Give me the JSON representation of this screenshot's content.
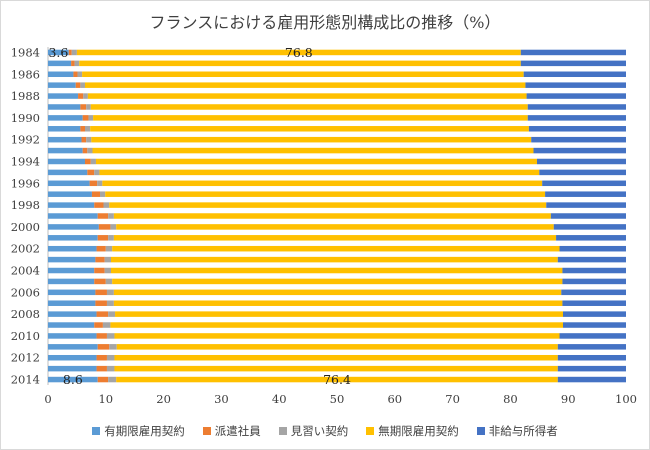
{
  "chart_data": {
    "type": "bar",
    "orientation": "horizontal",
    "stacked": true,
    "title": "フランスにおける雇用形態別構成比の推移（%）",
    "categories": [
      "1984",
      "1985",
      "1986",
      "1987",
      "1988",
      "1989",
      "1990",
      "1991",
      "1992",
      "1993",
      "1994",
      "1995",
      "1996",
      "1997",
      "1998",
      "1999",
      "2000",
      "2001",
      "2002",
      "2003",
      "2004",
      "2005",
      "2006",
      "2007",
      "2008",
      "2009",
      "2010",
      "2011",
      "2012",
      "2013",
      "2014"
    ],
    "category_tick_labels": [
      "1984",
      "1986",
      "1988",
      "1990",
      "1992",
      "1994",
      "1996",
      "1998",
      "2000",
      "2002",
      "2004",
      "2006",
      "2008",
      "2010",
      "2012",
      "2014"
    ],
    "xlim": [
      0,
      100
    ],
    "x_ticks": [
      0,
      10,
      20,
      30,
      40,
      50,
      60,
      70,
      80,
      90,
      100
    ],
    "grid": false,
    "legend_position": "bottom",
    "series": [
      {
        "name": "有期限雇用契約",
        "color": "#5B9BD5",
        "values": [
          3.6,
          4.0,
          4.4,
          4.8,
          5.2,
          5.6,
          6.0,
          5.6,
          5.8,
          6.0,
          6.4,
          6.8,
          7.2,
          7.6,
          8.0,
          8.6,
          8.8,
          8.6,
          8.4,
          8.2,
          8.0,
          8.0,
          8.2,
          8.2,
          8.4,
          8.0,
          8.4,
          8.6,
          8.4,
          8.4,
          8.6
        ]
      },
      {
        "name": "派遣社員",
        "color": "#ED7D31",
        "values": [
          0.5,
          0.6,
          0.7,
          0.8,
          0.9,
          1.0,
          1.0,
          0.8,
          0.8,
          0.8,
          1.0,
          1.2,
          1.3,
          1.4,
          1.6,
          1.8,
          2.0,
          1.8,
          1.6,
          1.6,
          1.8,
          2.0,
          2.0,
          2.0,
          2.0,
          1.5,
          1.8,
          2.0,
          1.8,
          1.8,
          1.8
        ]
      },
      {
        "name": "見習い契約",
        "color": "#A5A5A5",
        "values": [
          0.9,
          0.8,
          0.8,
          0.8,
          0.8,
          0.8,
          0.8,
          0.9,
          0.9,
          0.9,
          0.9,
          0.9,
          0.9,
          0.9,
          1.0,
          1.0,
          1.0,
          1.0,
          1.1,
          1.1,
          1.1,
          1.1,
          1.2,
          1.2,
          1.2,
          1.3,
          1.3,
          1.3,
          1.3,
          1.3,
          1.4
        ]
      },
      {
        "name": "無期限雇用契約",
        "color": "#FFC000",
        "values": [
          76.8,
          76.4,
          76.4,
          76.2,
          75.9,
          75.6,
          75.2,
          75.9,
          76.1,
          76.3,
          76.3,
          76.1,
          76.1,
          76.1,
          75.6,
          75.6,
          75.7,
          76.5,
          77.4,
          77.3,
          78.1,
          77.9,
          77.4,
          77.6,
          77.5,
          78.3,
          77.0,
          76.3,
          76.7,
          76.7,
          76.4
        ]
      },
      {
        "name": "非給与所得者",
        "color": "#4472C4",
        "values": [
          18.2,
          18.2,
          17.7,
          17.4,
          17.2,
          17.0,
          17.0,
          16.8,
          16.4,
          16.0,
          15.4,
          15.0,
          14.5,
          14.0,
          13.8,
          13.0,
          12.5,
          12.1,
          11.5,
          11.8,
          11.0,
          11.0,
          11.2,
          11.0,
          10.9,
          10.9,
          11.5,
          11.8,
          11.8,
          11.8,
          11.8
        ]
      }
    ],
    "annotations": [
      {
        "category": "1984",
        "series": "有期限雇用契約",
        "label": "3.6"
      },
      {
        "category": "1984",
        "series": "無期限雇用契約",
        "label": "76.8"
      },
      {
        "category": "2014",
        "series": "有期限雇用契約",
        "label": "8.6"
      },
      {
        "category": "2014",
        "series": "無期限雇用契約",
        "label": "76.4"
      }
    ]
  }
}
